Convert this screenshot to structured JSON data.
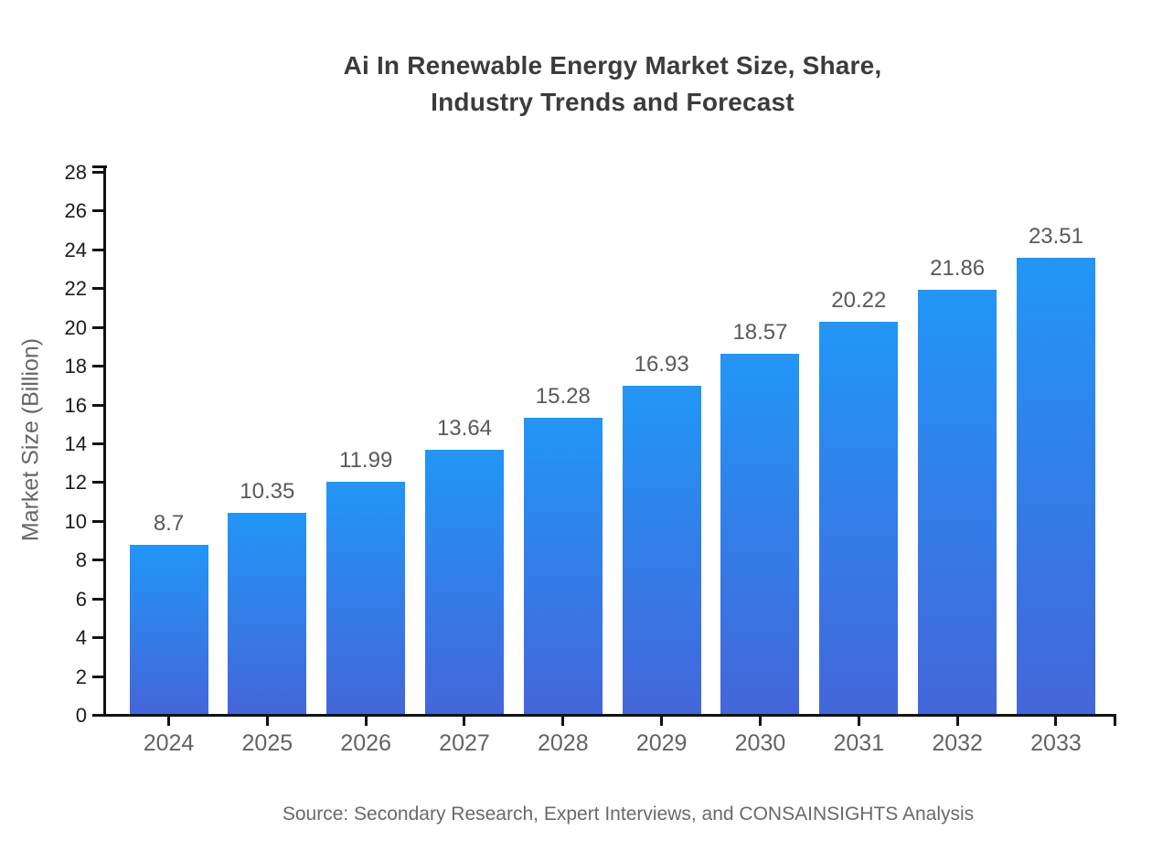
{
  "chart_data": {
    "type": "bar",
    "title_lines": [
      "Ai In Renewable Energy Market Size, Share,",
      "Industry Trends and Forecast"
    ],
    "categories": [
      "2024",
      "2025",
      "2026",
      "2027",
      "2028",
      "2029",
      "2030",
      "2031",
      "2032",
      "2033"
    ],
    "values": [
      8.7,
      10.35,
      11.99,
      13.64,
      15.28,
      16.93,
      18.57,
      20.22,
      21.86,
      23.51
    ],
    "value_labels": [
      "8.7",
      "10.35",
      "11.99",
      "13.64",
      "15.28",
      "16.93",
      "18.57",
      "20.22",
      "21.86",
      "23.51"
    ],
    "xlabel": "",
    "ylabel": "Market Size (Billion)",
    "ylim": [
      0,
      28
    ],
    "ytick_step": 2,
    "grid": false,
    "legend": "none",
    "source_note": "Source: Secondary Research, Expert Interviews, and CONSAINSIGHTS Analysis",
    "colors": {
      "bar_gradient_top": "#2196f7",
      "bar_gradient_bottom": "#4466d9",
      "axis": "#111111",
      "title_text": "#3b3b3b",
      "value_label_text": "#595959",
      "tick_label_text": "#636363",
      "source_text": "#696969"
    }
  }
}
